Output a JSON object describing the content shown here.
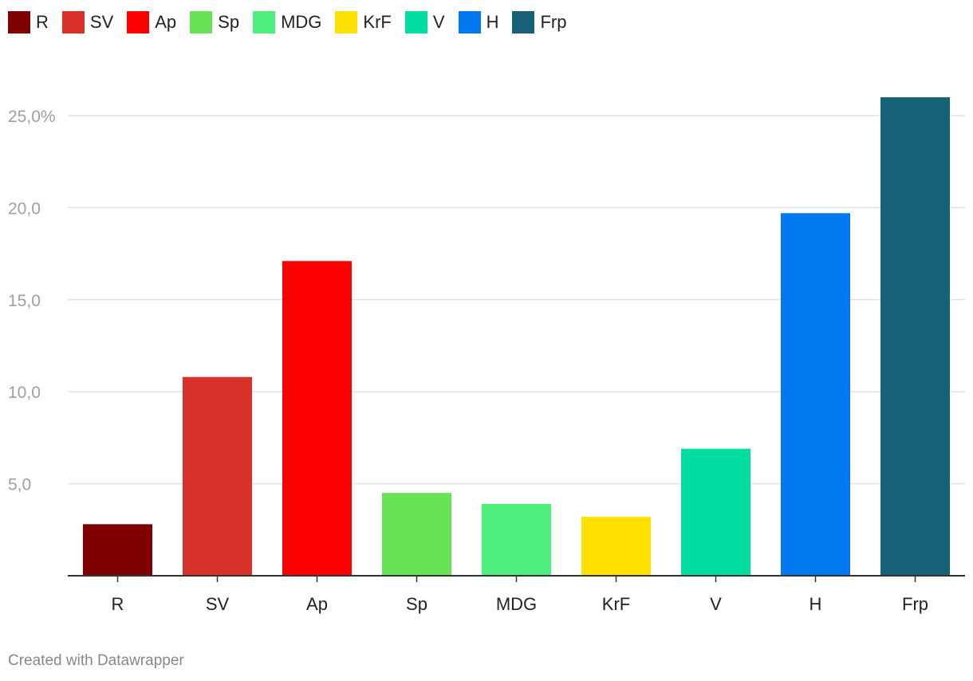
{
  "chart_data": {
    "type": "bar",
    "categories": [
      "R",
      "SV",
      "Ap",
      "Sp",
      "MDG",
      "KrF",
      "V",
      "H",
      "Frp"
    ],
    "values": [
      2.8,
      10.8,
      17.1,
      4.5,
      3.9,
      3.2,
      6.9,
      19.7,
      26.0
    ],
    "colors": [
      "#7f0000",
      "#d8322b",
      "#ff0000",
      "#68e357",
      "#4ef07d",
      "#ffe100",
      "#00dea2",
      "#0078f0",
      "#156279"
    ],
    "ylim": [
      0,
      27
    ],
    "yticks": [
      5,
      10,
      15,
      20,
      25
    ],
    "ytick_labels": [
      "5,0",
      "10,0",
      "15,0",
      "20,0",
      "25,0%"
    ],
    "grid": true,
    "legend_position": "top-left",
    "title": "",
    "xlabel": "",
    "ylabel": ""
  },
  "legend": {
    "items": [
      {
        "label": "R",
        "color": "#7f0000"
      },
      {
        "label": "SV",
        "color": "#d8322b"
      },
      {
        "label": "Ap",
        "color": "#ff0000"
      },
      {
        "label": "Sp",
        "color": "#68e357"
      },
      {
        "label": "MDG",
        "color": "#4ef07d"
      },
      {
        "label": "KrF",
        "color": "#ffe100"
      },
      {
        "label": "V",
        "color": "#00dea2"
      },
      {
        "label": "H",
        "color": "#0078f0"
      },
      {
        "label": "Frp",
        "color": "#156279"
      }
    ]
  },
  "footer": {
    "credit": "Created with Datawrapper"
  }
}
